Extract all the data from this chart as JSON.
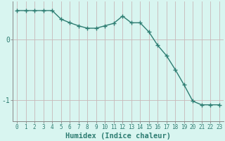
{
  "x": [
    0,
    1,
    2,
    3,
    4,
    5,
    6,
    7,
    8,
    9,
    10,
    11,
    12,
    13,
    14,
    15,
    16,
    17,
    18,
    19,
    20,
    21,
    22,
    23
  ],
  "y": [
    0.47,
    0.47,
    0.47,
    0.47,
    0.47,
    0.33,
    0.27,
    0.22,
    0.18,
    0.18,
    0.22,
    0.26,
    0.38,
    0.27,
    0.27,
    0.12,
    -0.1,
    -0.27,
    -0.5,
    -0.75,
    -1.02,
    -1.08,
    -1.08,
    -1.08
  ],
  "line_color": "#2e7d72",
  "marker": "+",
  "marker_size": 4,
  "marker_lw": 1.0,
  "bg_color": "#d8f5f0",
  "grid_color_v": "#c8b8b8",
  "grid_color_h": "#c8b8b8",
  "xlabel": "Humidex (Indice chaleur)",
  "xlabel_fontsize": 7.5,
  "yticks": [
    0,
    -1
  ],
  "ytick_labels": [
    "0",
    "-1"
  ],
  "xtick_labels": [
    "0",
    "1",
    "2",
    "3",
    "4",
    "5",
    "6",
    "7",
    "8",
    "9",
    "10",
    "11",
    "12",
    "13",
    "14",
    "15",
    "16",
    "17",
    "18",
    "19",
    "20",
    "21",
    "22",
    "23"
  ],
  "xtick_fontsize": 5.5,
  "ytick_fontsize": 7,
  "ylim": [
    -1.35,
    0.62
  ],
  "xlim": [
    -0.5,
    23.5
  ],
  "line_width": 1.0
}
